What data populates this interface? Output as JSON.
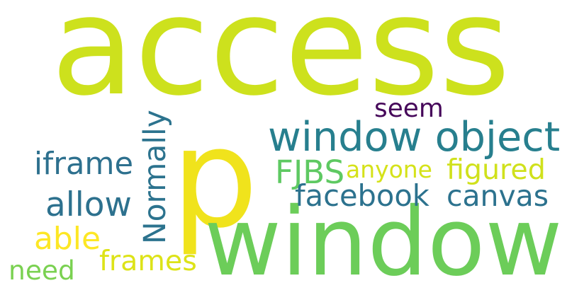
{
  "words": [
    {
      "id": "access",
      "text": "access",
      "color": "#cde11d"
    },
    {
      "id": "p",
      "text": "p",
      "color": "#f0e31c"
    },
    {
      "id": "window",
      "text": "window",
      "color": "#6ccd59"
    },
    {
      "id": "window-object",
      "text": "window object",
      "color": "#277f8e"
    },
    {
      "id": "seem",
      "text": "seem",
      "color": "#46075a"
    },
    {
      "id": "normally",
      "text": "Normally",
      "color": "#2c738e",
      "orientation": "vertical"
    },
    {
      "id": "iframe",
      "text": "iframe",
      "color": "#2d708e"
    },
    {
      "id": "fjbs",
      "text": "FJBS",
      "color": "#5ec962"
    },
    {
      "id": "anyone",
      "text": "anyone",
      "color": "#d5e21a"
    },
    {
      "id": "figured",
      "text": "figured",
      "color": "#d0e11c"
    },
    {
      "id": "facebook",
      "text": "facebook",
      "color": "#2c728e"
    },
    {
      "id": "canvas",
      "text": "canvas",
      "color": "#2c728e"
    },
    {
      "id": "allow",
      "text": "allow",
      "color": "#2d718e"
    },
    {
      "id": "able",
      "text": "able",
      "color": "#fde725"
    },
    {
      "id": "frames",
      "text": "frames",
      "color": "#dde318"
    },
    {
      "id": "need",
      "text": "need",
      "color": "#7ad151"
    }
  ]
}
